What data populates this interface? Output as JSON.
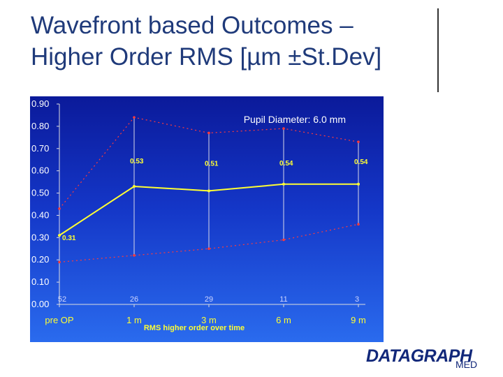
{
  "slide": {
    "title_line1": "Wavefront based Outcomes –",
    "title_line2": "Higher Order RMS [µm ±St.Dev]"
  },
  "logo": {
    "name": "DATAGRAPH",
    "sub": "MED"
  },
  "chart_data": {
    "type": "line",
    "title": "Pupil Diameter: 6.0 mm",
    "xlabel": "RMS higher order over time",
    "ylabel": "",
    "categories": [
      "pre OP",
      "1 m",
      "3 m",
      "6 m",
      "9 m"
    ],
    "ylim": [
      0,
      0.9
    ],
    "yticks": [
      "0.00",
      "0.10",
      "0.20",
      "0.30",
      "0.40",
      "0.50",
      "0.60",
      "0.70",
      "0.80",
      "0.90"
    ],
    "grid": false,
    "series": [
      {
        "role": "mean",
        "values": [
          0.31,
          0.53,
          0.51,
          0.54,
          0.54
        ],
        "color": "#ffff33"
      },
      {
        "role": "upper",
        "values": [
          0.43,
          0.84,
          0.77,
          0.79,
          0.73
        ],
        "color": "#ff3b3b"
      },
      {
        "role": "lower",
        "values": [
          0.19,
          0.22,
          0.25,
          0.29,
          0.36
        ],
        "color": "#ff3b3b"
      }
    ],
    "value_labels": [
      "0.31",
      "0.53",
      "0.51",
      "0.54",
      "0.54"
    ],
    "counts": [
      "52",
      "26",
      "29",
      "11",
      "3"
    ],
    "colors": {
      "background": "#1436c7",
      "axis": "#dddddd",
      "text": "#ffffff",
      "accent": "#ffff33"
    }
  }
}
